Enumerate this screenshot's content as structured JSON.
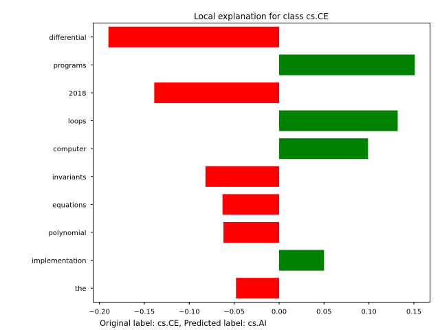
{
  "chart_data": {
    "type": "bar",
    "orientation": "horizontal",
    "title": "Local explanation for class cs.CE",
    "xlabel": "",
    "ylabel": "",
    "caption": "Original label: cs.CE, Predicted label: cs.AI",
    "categories": [
      "differential",
      "programs",
      "2018",
      "loops",
      "computer",
      "invariants",
      "equations",
      "polynomial",
      "implementation",
      "the"
    ],
    "values": [
      -0.19,
      0.151,
      -0.139,
      0.132,
      0.099,
      -0.082,
      -0.063,
      -0.062,
      0.05,
      -0.048
    ],
    "xlim": [
      -0.207,
      0.168
    ],
    "xticks": [
      -0.2,
      -0.15,
      -0.1,
      -0.05,
      0.0,
      0.05,
      0.1,
      0.15
    ],
    "xtick_labels": [
      "−0.20",
      "−0.15",
      "−0.10",
      "−0.05",
      "0.00",
      "0.05",
      "0.10",
      "0.15"
    ],
    "grid": false,
    "colors": {
      "positive": "#008000",
      "negative": "#ff0000"
    }
  }
}
